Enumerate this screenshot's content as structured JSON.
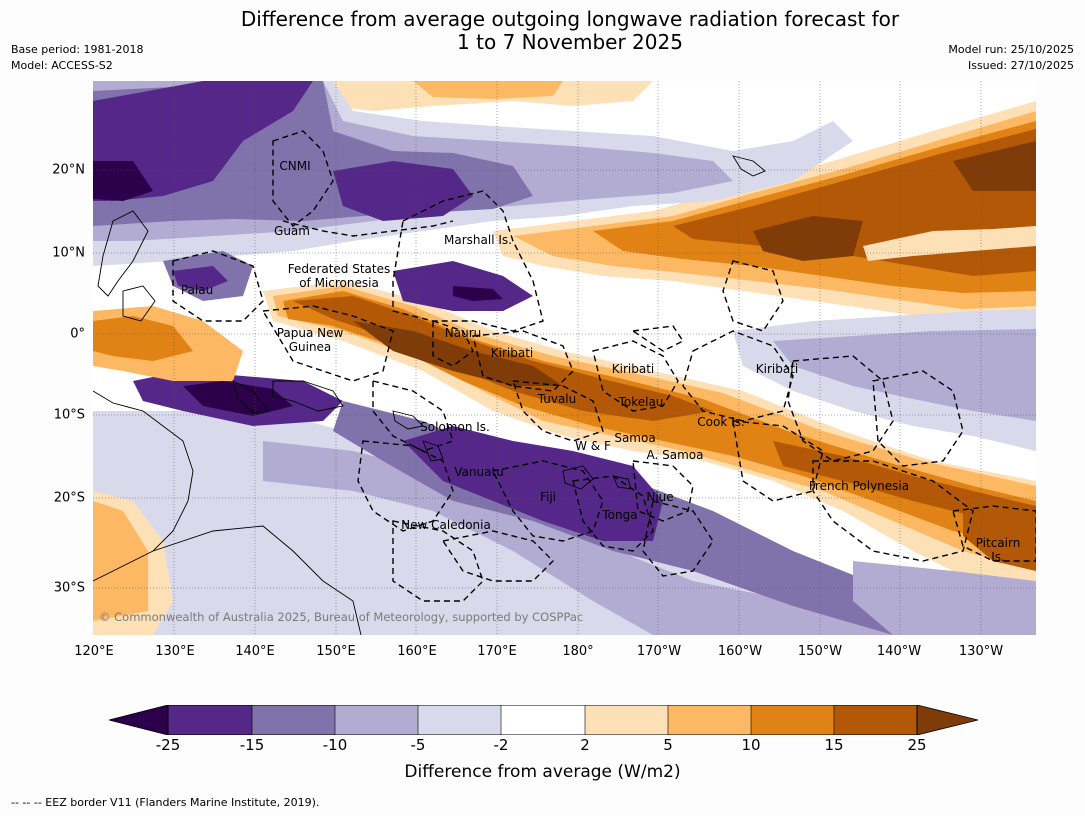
{
  "title": {
    "line1": "Difference from average outgoing longwave radiation forecast for",
    "line2": "1 to 7 November 2025"
  },
  "meta": {
    "base_period": "Base period: 1981-2018",
    "model": "Model: ACCESS-S2",
    "model_run": "Model run: 25/10/2025",
    "issued": "Issued: 27/10/2025"
  },
  "map": {
    "lat_labels": [
      "20°N",
      "10°N",
      "0°",
      "10°S",
      "20°S",
      "30°S"
    ],
    "lon_labels": [
      "120°E",
      "130°E",
      "140°E",
      "150°E",
      "160°E",
      "170°E",
      "180°",
      "170°W",
      "160°W",
      "150°W",
      "140°W",
      "130°W"
    ],
    "regions": {
      "cnmi": "CNMI",
      "guam": "Guam",
      "marshall": "Marshall Is.",
      "fsm_line1": "Federated States",
      "fsm_line2": "of Micronesia",
      "palau": "Palau",
      "png_line1": "Papua New",
      "png_line2": "Guinea",
      "nauru": "Nauru",
      "kiribati_west": "Kiribati",
      "kiribati_central": "Kiribati",
      "kiribati_east": "Kiribati",
      "tuvalu": "Tuvalu",
      "tokelau": "Tokelau",
      "cook": "Cook Is.",
      "solomon": "Solomon Is.",
      "wf": "W & F",
      "samoa": "Samoa",
      "am_samoa": "A. Samoa",
      "vanuatu": "Vanuatu",
      "fiji": "Fiji",
      "niue": "Niue",
      "tonga": "Tonga",
      "french_poly": "French Polynesia",
      "new_caledonia": "New Caledonia",
      "pitcairn_line1": "Pitcairn",
      "pitcairn_line2": "Is."
    },
    "credit": "© Commonwealth of Australia 2025, Bureau of Meteorology, supported by COSPPac"
  },
  "colorbar": {
    "ticks": [
      "-25",
      "-15",
      "-10",
      "-5",
      "-2",
      "2",
      "5",
      "10",
      "15",
      "25"
    ],
    "colors": [
      "#2d004b",
      "#542788",
      "#8073ac",
      "#b2abd2",
      "#d8daeb",
      "#ffffff",
      "#fee0b6",
      "#fdb863",
      "#e08214",
      "#b35806",
      "#7f3b08"
    ],
    "label": "Difference from average (W/m2)"
  },
  "footnote": "--  --  -- EEZ border V11 (Flanders Marine Institute, 2019)."
}
